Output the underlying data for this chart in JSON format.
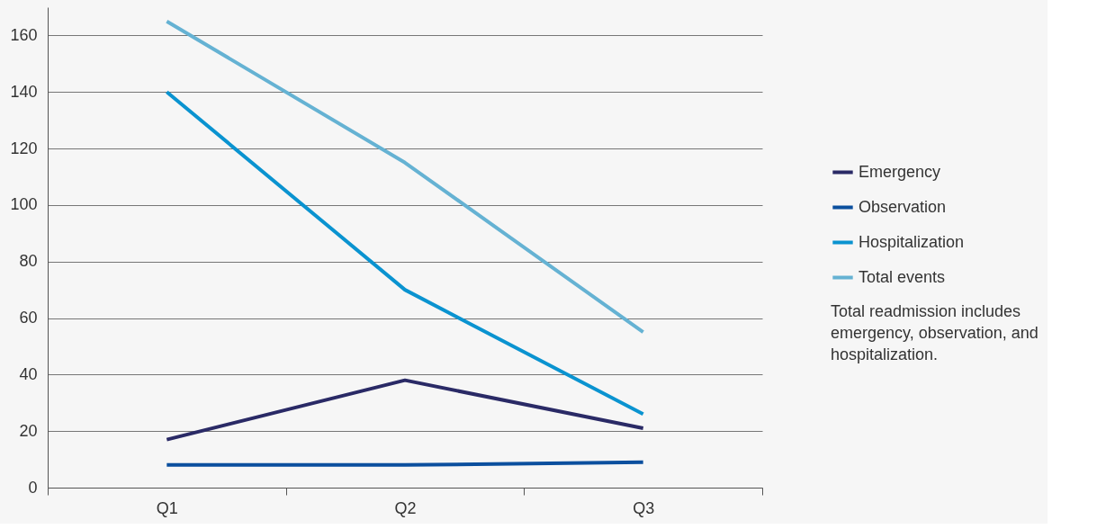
{
  "chart_data": {
    "type": "line",
    "categories": [
      "Q1",
      "Q2",
      "Q3"
    ],
    "series": [
      {
        "name": "Emergency",
        "color": "#2a2a66",
        "values": [
          17,
          38,
          21
        ]
      },
      {
        "name": "Observation",
        "color": "#0b4f9e",
        "values": [
          8,
          8,
          9
        ]
      },
      {
        "name": "Hospitalization",
        "color": "#0a93d0",
        "values": [
          140,
          70,
          26
        ]
      },
      {
        "name": "Total events",
        "color": "#65b2d3",
        "values": [
          165,
          115,
          55
        ]
      }
    ],
    "ylim": [
      0,
      170
    ],
    "yticks": [
      0,
      20,
      40,
      60,
      80,
      100,
      120,
      140,
      160
    ],
    "grid": "y",
    "legend": "right",
    "marker": "none",
    "line_style": "solid",
    "annotations": [
      "Total readmission includes emergency, observation, and hospitalization."
    ]
  }
}
